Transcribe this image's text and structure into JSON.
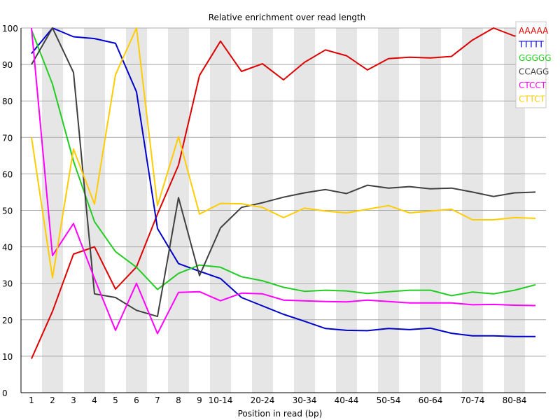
{
  "chart_data": {
    "type": "line",
    "title": "Relative enrichment over read length",
    "xlabel": "Position in read (bp)",
    "ylabel": "",
    "ylim": [
      0,
      100
    ],
    "yticks": [
      0,
      10,
      20,
      30,
      40,
      50,
      60,
      70,
      80,
      90,
      100
    ],
    "categories": [
      "1",
      "2",
      "3",
      "4",
      "5",
      "6",
      "7",
      "8",
      "9",
      "10-14",
      "15-19",
      "20-24",
      "25-29",
      "30-34",
      "35-39",
      "40-44",
      "45-49",
      "50-54",
      "55-59",
      "60-64",
      "65-69",
      "70-74",
      "75-79",
      "80-84",
      "85-89"
    ],
    "tick_labels": [
      "1",
      "2",
      "3",
      "4",
      "5",
      "6",
      "7",
      "8",
      "9",
      "10-14",
      "",
      "20-24",
      "",
      "30-34",
      "",
      "40-44",
      "",
      "50-54",
      "",
      "60-64",
      "",
      "70-74",
      "",
      "80-84",
      ""
    ],
    "grid": true,
    "legend_position": "top-right",
    "series": [
      {
        "name": "AAAAA",
        "color": "#dd0000",
        "values": [
          9.3,
          22.3,
          38,
          40,
          28.4,
          34.5,
          49,
          62.4,
          87,
          96.4,
          88.1,
          90.2,
          85.8,
          90.6,
          94,
          92.4,
          88.5,
          91.6,
          92,
          91.8,
          92.2,
          96.7,
          100,
          97.8,
          98.6
        ]
      },
      {
        "name": "TTTTT",
        "color": "#0000cc",
        "values": [
          93,
          100,
          97.6,
          97.1,
          95.8,
          82.5,
          45,
          35.4,
          33.3,
          31.3,
          26.1,
          23.8,
          21.5,
          19.6,
          17.6,
          17.1,
          17,
          17.6,
          17.3,
          17.7,
          16.3,
          15.6,
          15.6,
          15.4,
          15.4
        ]
      },
      {
        "name": "GGGGG",
        "color": "#22cc22",
        "values": [
          99.5,
          84.6,
          63.5,
          46.9,
          38.7,
          34.4,
          28.3,
          32.7,
          35,
          34.4,
          31.8,
          30.7,
          28.9,
          27.8,
          28.1,
          27.9,
          27.2,
          27.7,
          28.1,
          28.1,
          26.6,
          27.6,
          27.1,
          28.1,
          29.6
        ]
      },
      {
        "name": "CCAGG",
        "color": "#404040",
        "values": [
          90,
          100,
          87.8,
          27.1,
          26.1,
          22.6,
          20.9,
          53.5,
          32.1,
          45.2,
          50.8,
          52.1,
          53.6,
          54.8,
          55.7,
          54.6,
          56.9,
          56.1,
          56.5,
          55.9,
          56.1,
          55,
          53.8,
          54.8,
          55
        ]
      },
      {
        "name": "CTCCT",
        "color": "#ff00ff",
        "values": [
          100,
          37.6,
          46.4,
          31.3,
          17.1,
          30,
          16.2,
          27.5,
          27.7,
          25.2,
          27.3,
          27.1,
          25.4,
          25.2,
          25,
          24.9,
          25.4,
          25,
          24.6,
          24.6,
          24.6,
          24.1,
          24.2,
          24,
          23.9
        ]
      },
      {
        "name": "CTTCT",
        "color": "#ffcc00",
        "values": [
          70,
          31.5,
          66.8,
          51.7,
          87.2,
          100,
          51.3,
          70.2,
          49,
          51.9,
          51.8,
          50.8,
          48,
          50.6,
          49.8,
          49.3,
          50.3,
          51.3,
          49.3,
          49.8,
          50.3,
          47.4,
          47.4,
          48,
          47.8
        ]
      }
    ]
  }
}
